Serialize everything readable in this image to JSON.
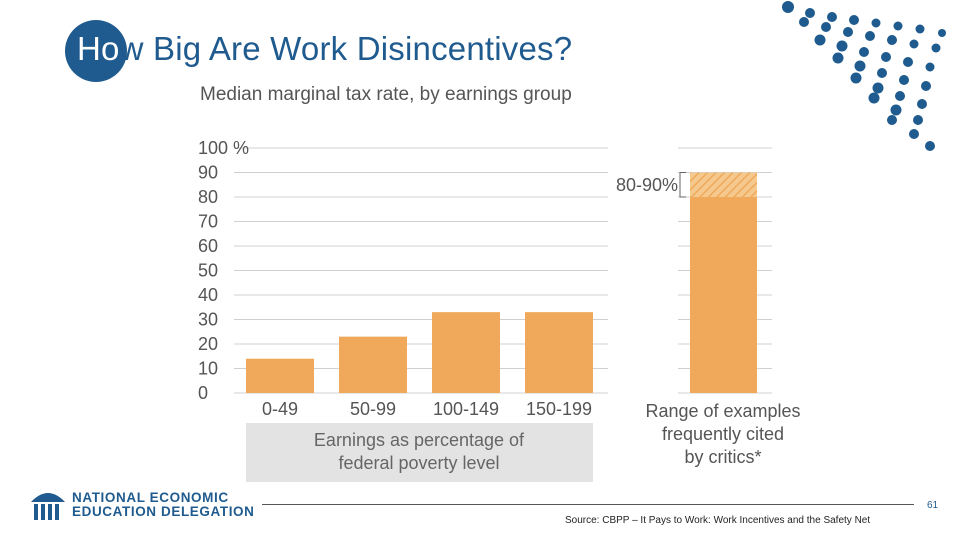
{
  "slide": {
    "title_highlight": "Ho",
    "title_rest": "w Big Are Work Disincentives?",
    "source": "Source: CBPP – It Pays to Work: Work Incentives and the Safety Net",
    "page_number": "61",
    "brand_line1": "NATIONAL ECONOMIC",
    "brand_line2": "EDUCATION DELEGATION"
  },
  "colors": {
    "brand_blue": "#1f5b8e",
    "bar": "#f0a95a",
    "bar_hatch": "#f5c88e",
    "xlabel_box": "#e3e3e3",
    "grid": "#d0d0d0",
    "text": "#555555"
  },
  "chart_data": {
    "type": "bar",
    "title": "Median marginal tax rate, by earnings group",
    "categories": [
      "0-49",
      "50-99",
      "100-149",
      "150-199"
    ],
    "values": [
      14,
      23,
      33,
      33
    ],
    "ylim": [
      0,
      100
    ],
    "y_ticks": [
      "100 %",
      "90",
      "80",
      "70",
      "60",
      "50",
      "40",
      "30",
      "20",
      "10",
      "0"
    ],
    "xlabel_line1": "Earnings as percentage of",
    "xlabel_line2": "federal poverty level",
    "grid": true,
    "range_bar": {
      "low": 80,
      "high": 90,
      "range_label": "80-90%",
      "label_line1": "Range of examples",
      "label_line2": "frequently cited",
      "label_line3": "by critics*"
    }
  }
}
